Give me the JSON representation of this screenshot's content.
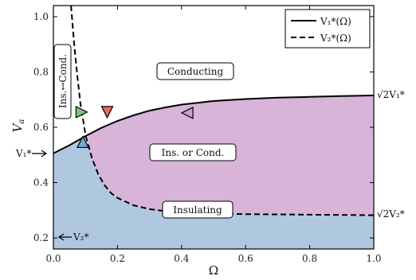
{
  "chart_data": {
    "type": "line",
    "xlabel": "Ω",
    "ylabel": "V_a",
    "xlim": [
      0.0,
      1.0
    ],
    "ylim": [
      0.16,
      1.04
    ],
    "xticks": [
      "0.0",
      "0.2",
      "0.4",
      "0.6",
      "0.8",
      "1.0"
    ],
    "xtick_values": [
      0.0,
      0.2,
      0.4,
      0.6,
      0.8,
      1.0
    ],
    "yticks": [
      "0.2",
      "0.4",
      "0.6",
      "0.8",
      "1.0"
    ],
    "ytick_values": [
      0.2,
      0.4,
      0.6,
      0.8,
      1.0
    ],
    "series": [
      {
        "name": "V₁*(Ω)",
        "style": "solid",
        "x": [
          0.0,
          0.05,
          0.1,
          0.15,
          0.2,
          0.25,
          0.3,
          0.35,
          0.4,
          0.5,
          0.6,
          0.7,
          0.8,
          0.9,
          1.0
        ],
        "y": [
          0.506,
          0.535,
          0.568,
          0.598,
          0.623,
          0.643,
          0.66,
          0.672,
          0.682,
          0.695,
          0.702,
          0.707,
          0.71,
          0.713,
          0.715
        ]
      },
      {
        "name": "V₂*(Ω)",
        "style": "dashed",
        "x": [
          0.055,
          0.065,
          0.075,
          0.085,
          0.1,
          0.12,
          0.14,
          0.16,
          0.18,
          0.2,
          0.25,
          0.3,
          0.35,
          0.4,
          0.5,
          0.6,
          0.7,
          0.8,
          0.9,
          1.0
        ],
        "y": [
          1.04,
          0.9,
          0.78,
          0.68,
          0.575,
          0.49,
          0.43,
          0.39,
          0.362,
          0.345,
          0.318,
          0.304,
          0.297,
          0.292,
          0.288,
          0.286,
          0.285,
          0.284,
          0.283,
          0.282
        ]
      }
    ],
    "legend": {
      "position": "top-right",
      "entries": [
        "V₁*(Ω)",
        "V₂*(Ω)"
      ]
    },
    "region_colors": {
      "insulating": "#afc8e0",
      "ins_or_cond": "#d8b4d8"
    },
    "region_labels": {
      "conducting": "Conducting",
      "ins_or_cond": "Ins. or Cond.",
      "insulating": "Insulating",
      "ins_to_cond": "Ins.↔Cond."
    },
    "annotations": {
      "v1_left": "V₁*",
      "v2_left": "V₂*",
      "v1_right": "√2V₁*",
      "v2_right": "√2V₂*"
    },
    "markers": [
      {
        "shape": "triangle-right",
        "color": "#7cc47c",
        "x": 0.088,
        "y": 0.655
      },
      {
        "shape": "triangle-down",
        "color": "#e8685a",
        "x": 0.168,
        "y": 0.655
      },
      {
        "shape": "triangle-left",
        "color": "#c9a0d6",
        "x": 0.418,
        "y": 0.652
      },
      {
        "shape": "triangle-up",
        "color": "#7aa8d8",
        "x": 0.092,
        "y": 0.547
      }
    ]
  }
}
